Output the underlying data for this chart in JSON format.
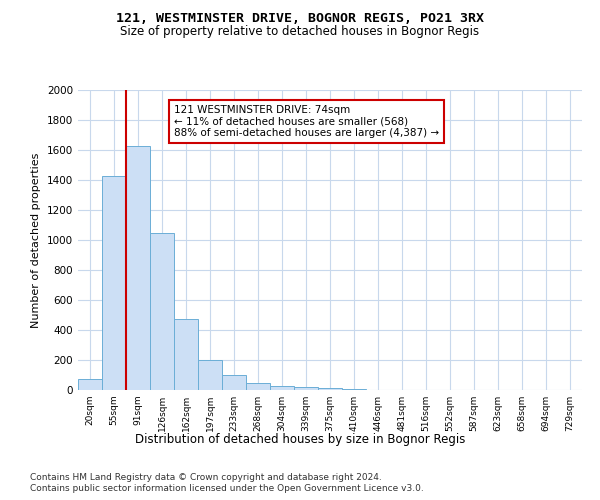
{
  "title1": "121, WESTMINSTER DRIVE, BOGNOR REGIS, PO21 3RX",
  "title2": "Size of property relative to detached houses in Bognor Regis",
  "xlabel": "Distribution of detached houses by size in Bognor Regis",
  "ylabel": "Number of detached properties",
  "footnote1": "Contains HM Land Registry data © Crown copyright and database right 2024.",
  "footnote2": "Contains public sector information licensed under the Open Government Licence v3.0.",
  "bar_labels": [
    "20sqm",
    "55sqm",
    "91sqm",
    "126sqm",
    "162sqm",
    "197sqm",
    "233sqm",
    "268sqm",
    "304sqm",
    "339sqm",
    "375sqm",
    "410sqm",
    "446sqm",
    "481sqm",
    "516sqm",
    "552sqm",
    "587sqm",
    "623sqm",
    "658sqm",
    "694sqm",
    "729sqm"
  ],
  "bar_values": [
    75,
    1425,
    1625,
    1050,
    475,
    200,
    100,
    50,
    30,
    20,
    15,
    5,
    2,
    1,
    1,
    0,
    0,
    0,
    0,
    0,
    0
  ],
  "bar_color": "#ccdff5",
  "bar_edge_color": "#6baed6",
  "ylim": [
    0,
    2000
  ],
  "yticks": [
    0,
    200,
    400,
    600,
    800,
    1000,
    1200,
    1400,
    1600,
    1800,
    2000
  ],
  "property_line_x": 1.5,
  "property_line_color": "#cc0000",
  "annotation_text": "121 WESTMINSTER DRIVE: 74sqm\n← 11% of detached houses are smaller (568)\n88% of semi-detached houses are larger (4,387) →",
  "annotation_box_color": "#ffffff",
  "annotation_box_edge_color": "#cc0000",
  "background_color": "#ffffff",
  "grid_color": "#c8d8ec"
}
